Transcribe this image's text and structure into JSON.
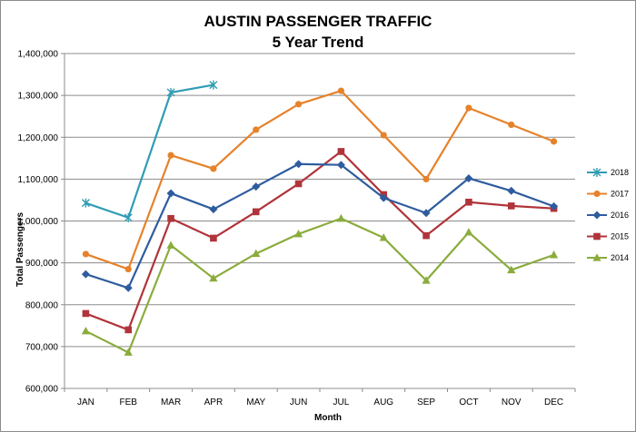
{
  "chart_data": {
    "type": "line",
    "title": "AUSTIN PASSENGER TRAFFIC",
    "subtitle": "5 Year Trend",
    "xlabel": "Month",
    "ylabel": "Total Passengers",
    "categories": [
      "JAN",
      "FEB",
      "MAR",
      "APR",
      "MAY",
      "JUN",
      "JUL",
      "AUG",
      "SEP",
      "OCT",
      "NOV",
      "DEC"
    ],
    "ylim": [
      600000,
      1400000
    ],
    "yticks": [
      600000,
      700000,
      800000,
      900000,
      1000000,
      1100000,
      1200000,
      1300000,
      1400000
    ],
    "ytick_labels": [
      "600,000",
      "700,000",
      "800,000",
      "900,000",
      "1,000,000",
      "1,100,000",
      "1,200,000",
      "1,300,000",
      "1,400,000"
    ],
    "grid": "horizontal",
    "legend_position": "right",
    "series": [
      {
        "name": "2018",
        "color": "#2f9cb4",
        "marker": "asterisk",
        "values": [
          1043000,
          1008000,
          1307000,
          1325000,
          null,
          null,
          null,
          null,
          null,
          null,
          null,
          null
        ]
      },
      {
        "name": "2017",
        "color": "#e6822a",
        "marker": "circle",
        "values": [
          921000,
          885000,
          1157000,
          1125000,
          1218000,
          1279000,
          1311000,
          1205000,
          1100000,
          1270000,
          1230000,
          1190000
        ]
      },
      {
        "name": "2016",
        "color": "#2e5c9e",
        "marker": "diamond",
        "values": [
          873000,
          840000,
          1066000,
          1028000,
          1082000,
          1136000,
          1134000,
          1055000,
          1019000,
          1102000,
          1072000,
          1035000
        ]
      },
      {
        "name": "2015",
        "color": "#b0343a",
        "marker": "square",
        "values": [
          779000,
          740000,
          1006000,
          959000,
          1022000,
          1089000,
          1166000,
          1063000,
          965000,
          1045000,
          1036000,
          1030000
        ]
      },
      {
        "name": "2014",
        "color": "#8aac3c",
        "marker": "triangle",
        "values": [
          737000,
          686000,
          942000,
          863000,
          922000,
          969000,
          1006000,
          960000,
          858000,
          973000,
          883000,
          919000
        ]
      }
    ]
  }
}
